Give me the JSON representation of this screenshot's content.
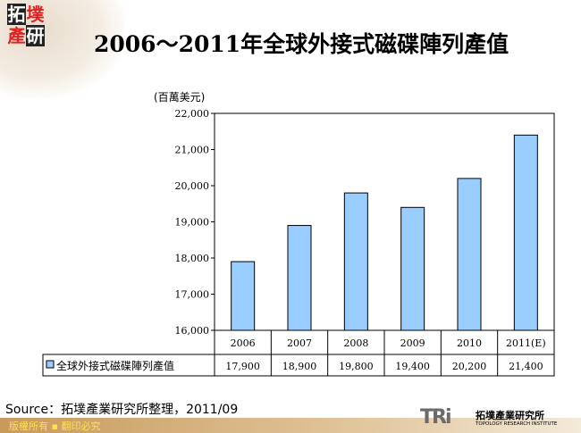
{
  "logo": {
    "c1": "拓",
    "c2": "墣",
    "c3": "產",
    "c4": "研"
  },
  "title": "2006～2011年全球外接式磁碟陣列產值",
  "unit": "(百萬美元)",
  "chart_data": {
    "type": "bar",
    "title": "2006～2011年全球外接式磁碟陣列產值",
    "ylabel": "(百萬美元)",
    "categories": [
      "2006",
      "2007",
      "2008",
      "2009",
      "2010",
      "2011(E)"
    ],
    "series": [
      {
        "name": "全球外接式磁碟陣列產值",
        "values": [
          17900,
          18900,
          19800,
          19400,
          20200,
          21400
        ],
        "color": "#99ccff"
      }
    ],
    "value_labels": [
      "17,900",
      "18,900",
      "19,800",
      "19,400",
      "20,200",
      "21,400"
    ],
    "ylim": [
      16000,
      22000
    ],
    "yticks": [
      "16,000",
      "17,000",
      "18,000",
      "19,000",
      "20,000",
      "21,000",
      "22,000"
    ],
    "grid": false,
    "legend": "data-table"
  },
  "source": "Source：拓墣產業研究所整理，2011/09",
  "footer": "版權所有 ▪ 翻印必究",
  "brand": {
    "mark": "TRi",
    "cn": "拓墣產業研究所",
    "en": "TOPOLOGY RESEARCH INSTITUTE"
  }
}
